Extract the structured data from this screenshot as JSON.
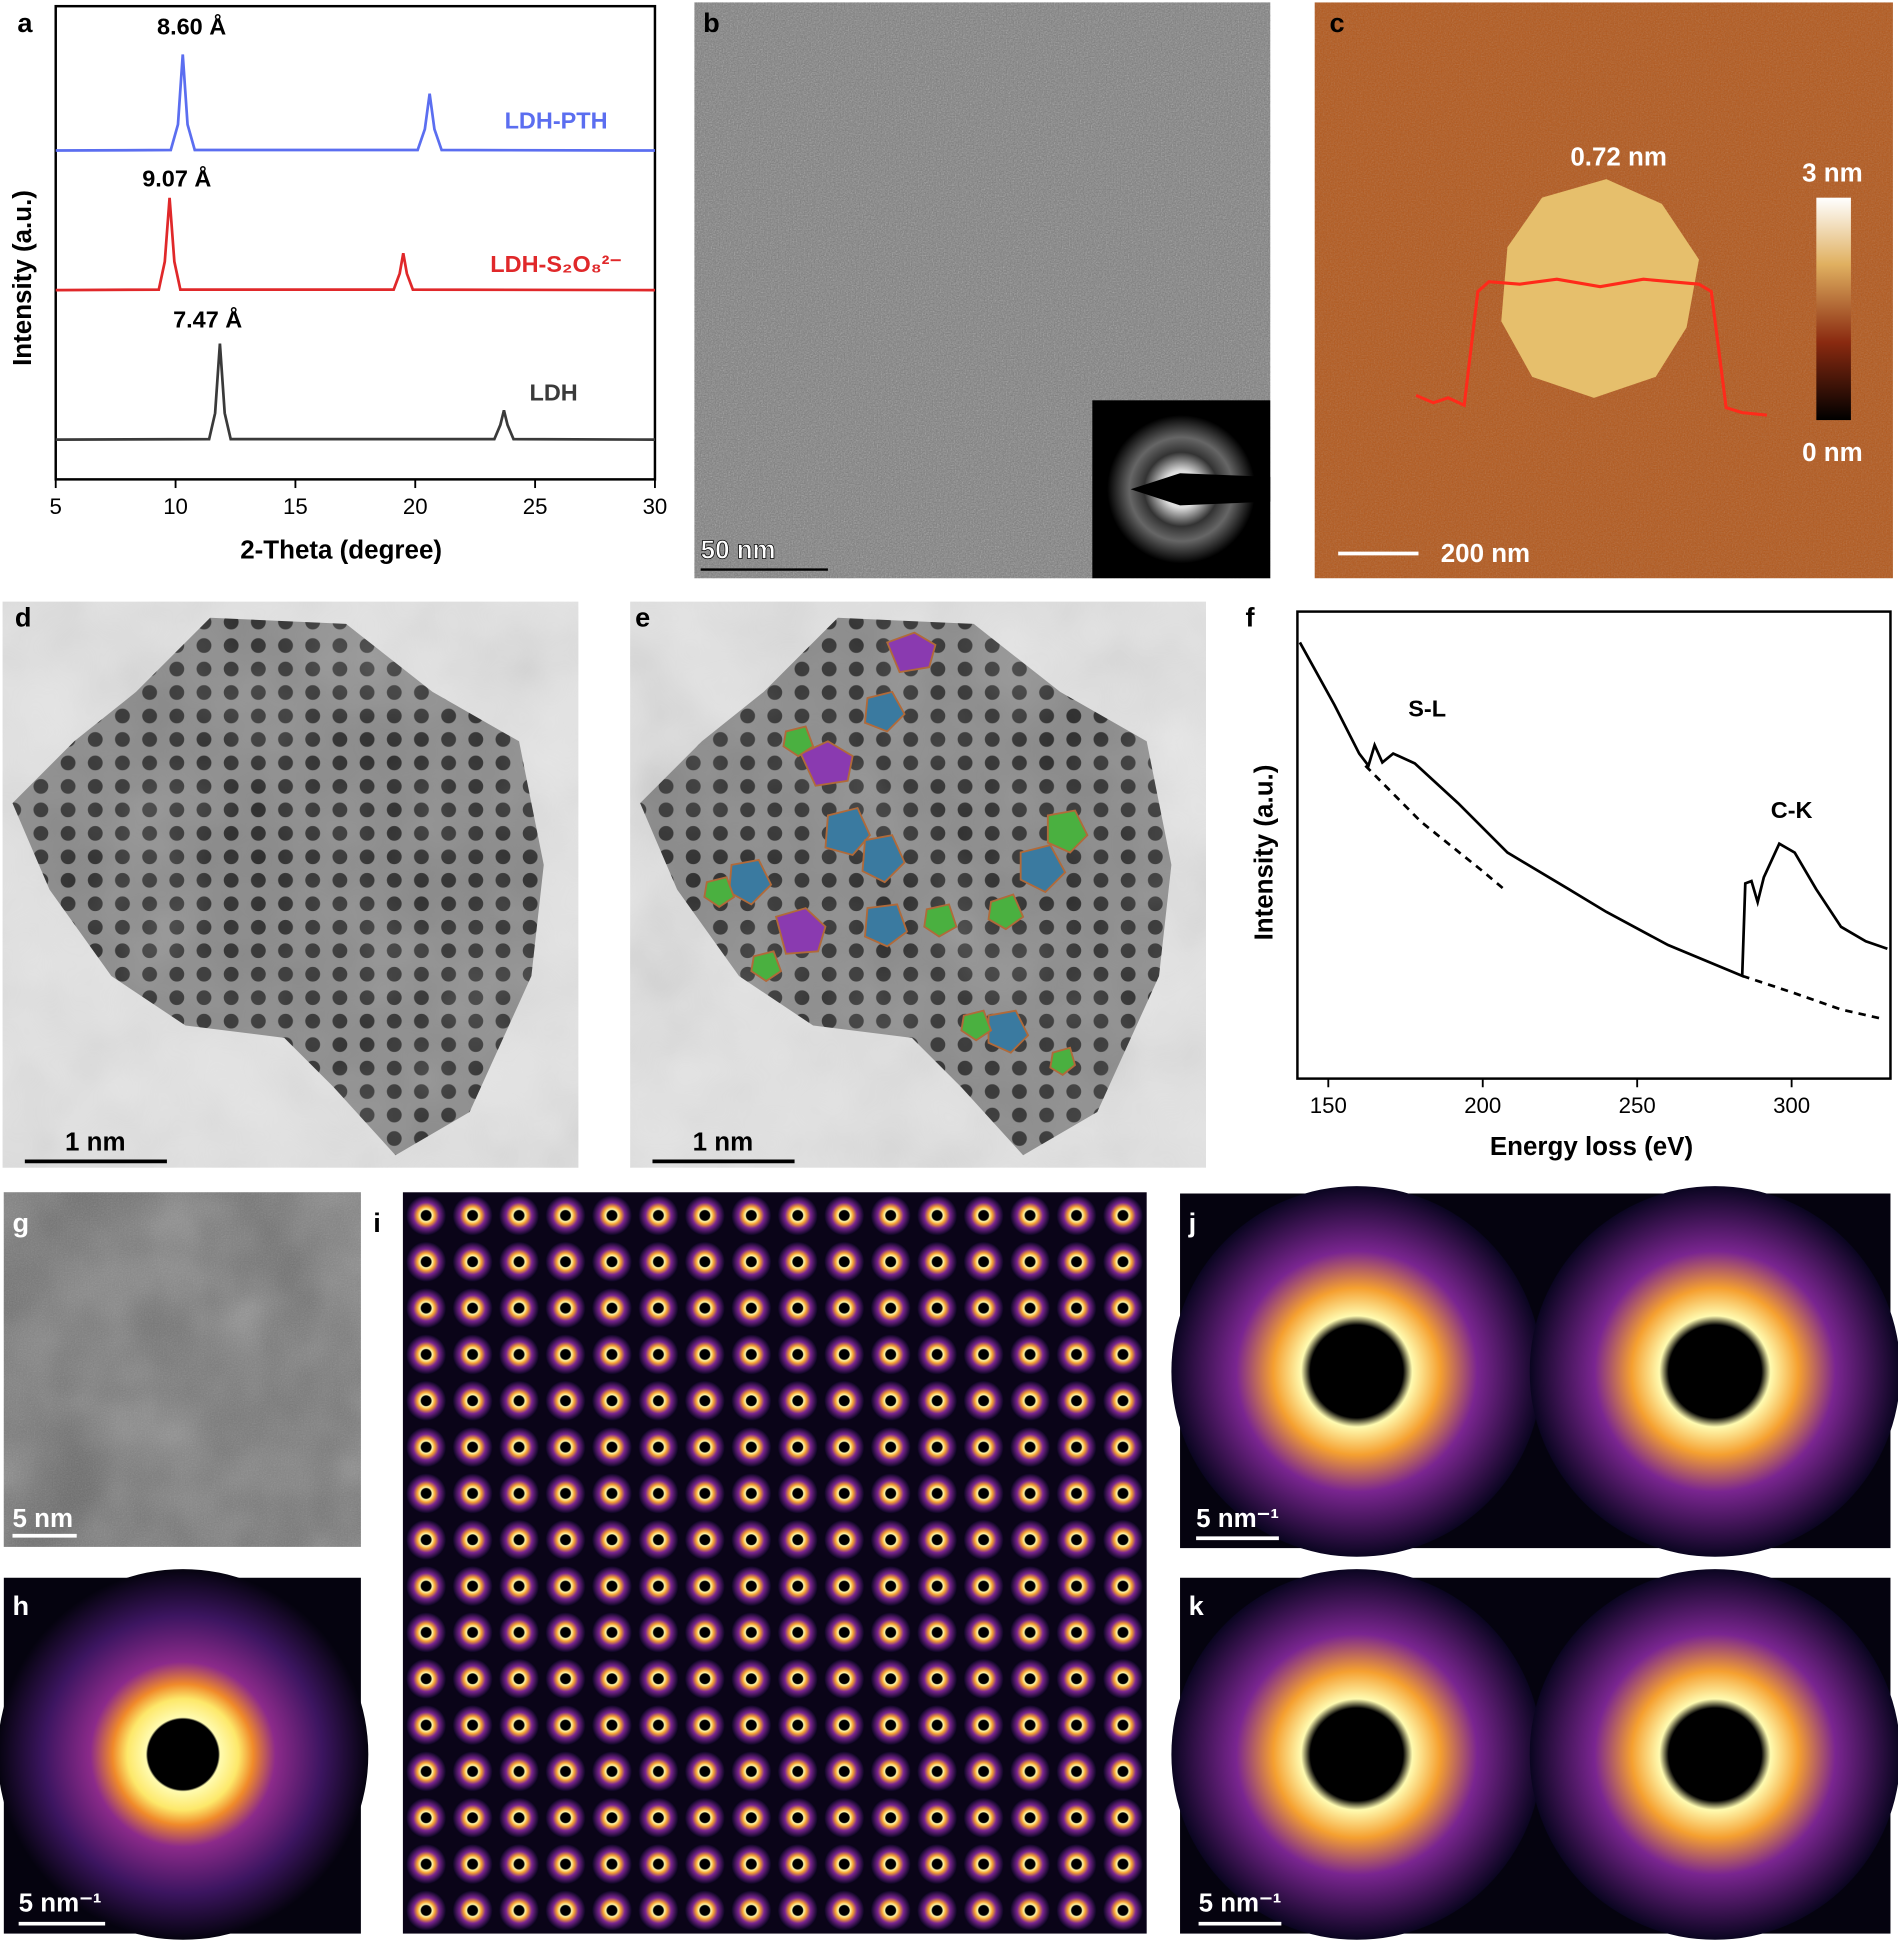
{
  "chart_data": [
    {
      "type": "line",
      "panel_label": "a",
      "x_label": "2-Theta (degree)",
      "y_label": "Intensity (a.u.)",
      "xlim": [
        5,
        30
      ],
      "xticks": [
        5,
        10,
        15,
        20,
        25,
        30
      ],
      "ylim": [
        0,
        100
      ],
      "annotations": [
        "8.60 Å",
        "9.07 Å",
        "7.47 Å"
      ],
      "series": [
        {
          "name": "LDH-PTH",
          "color": "#5b6ef0",
          "x": [
            5,
            9.8,
            10.1,
            10.3,
            10.5,
            10.8,
            20.1,
            20.4,
            20.6,
            20.8,
            21.1,
            30
          ],
          "values": [
            69.5,
            69.6,
            75,
            89.8,
            75,
            69.6,
            69.6,
            74,
            81.5,
            74,
            69.6,
            69.5
          ]
        },
        {
          "name": "LDH-S₂O₈²⁻",
          "color": "#e0282a",
          "x": [
            5,
            9.3,
            9.55,
            9.75,
            9.95,
            10.2,
            19.1,
            19.35,
            19.5,
            19.65,
            19.9,
            30
          ],
          "values": [
            40,
            40.1,
            46,
            59.5,
            46,
            40.1,
            40.1,
            43.5,
            47.8,
            43.5,
            40.1,
            40
          ]
        },
        {
          "name": "LDH",
          "color": "#3a3a3a",
          "x": [
            5,
            11.4,
            11.65,
            11.85,
            12.05,
            12.3,
            23.3,
            23.55,
            23.7,
            23.85,
            24.1,
            30
          ],
          "values": [
            8.4,
            8.5,
            14,
            28.7,
            14,
            8.5,
            8.5,
            11.5,
            14.6,
            11.5,
            8.5,
            8.4
          ]
        }
      ]
    },
    {
      "type": "line",
      "panel_label": "f",
      "x_label": "Energy loss (eV)",
      "y_label": "Intensity (a.u.)",
      "xlim": [
        140,
        332
      ],
      "xticks": [
        150,
        200,
        250,
        300
      ],
      "ylim": [
        0,
        100
      ],
      "annotations": [
        "S-L",
        "C-K"
      ],
      "series": [
        {
          "color": "#000000",
          "style": "solid",
          "x": [
            140.8,
            152,
            160,
            163,
            165,
            167.5,
            171,
            178,
            192,
            208,
            228,
            240,
            260,
            284,
            285,
            287,
            289,
            291,
            296,
            301,
            308,
            316,
            324,
            331
          ],
          "values": [
            93.4,
            80,
            69.6,
            67,
            71.4,
            67.7,
            69.6,
            67.5,
            59,
            48.4,
            40.5,
            35.7,
            28.6,
            22,
            41.8,
            42.3,
            37.8,
            43.1,
            50.3,
            48.4,
            40.5,
            32.5,
            29.4,
            27.8
          ]
        },
        {
          "color": "#000000",
          "style": "dashed",
          "x": [
            162,
            180,
            200,
            207
          ],
          "values": [
            67,
            55,
            44.4,
            40.5
          ]
        },
        {
          "color": "#000000",
          "style": "dashed",
          "x": [
            284,
            300,
            316,
            330
          ],
          "values": [
            22,
            18.5,
            14.8,
            12.7
          ]
        }
      ]
    }
  ],
  "panels": {
    "b": {
      "label": "b",
      "scale_bar": "50 nm"
    },
    "c": {
      "label": "c",
      "height": "0.72 nm",
      "colorbar_max": "3 nm",
      "colorbar_min": "0 nm",
      "scale_bar": "200 nm"
    },
    "d": {
      "label": "d",
      "scale_bar": "1 nm"
    },
    "e": {
      "label": "e",
      "scale_bar": "1 nm"
    },
    "g": {
      "label": "g",
      "scale_bar": "5 nm"
    },
    "h": {
      "label": "h",
      "scale_bar": "5 nm⁻¹"
    },
    "i": {
      "label": "i"
    },
    "j": {
      "label": "j",
      "scale_bar": "5 nm⁻¹"
    },
    "k": {
      "label": "k",
      "scale_bar": "5 nm⁻¹"
    }
  }
}
